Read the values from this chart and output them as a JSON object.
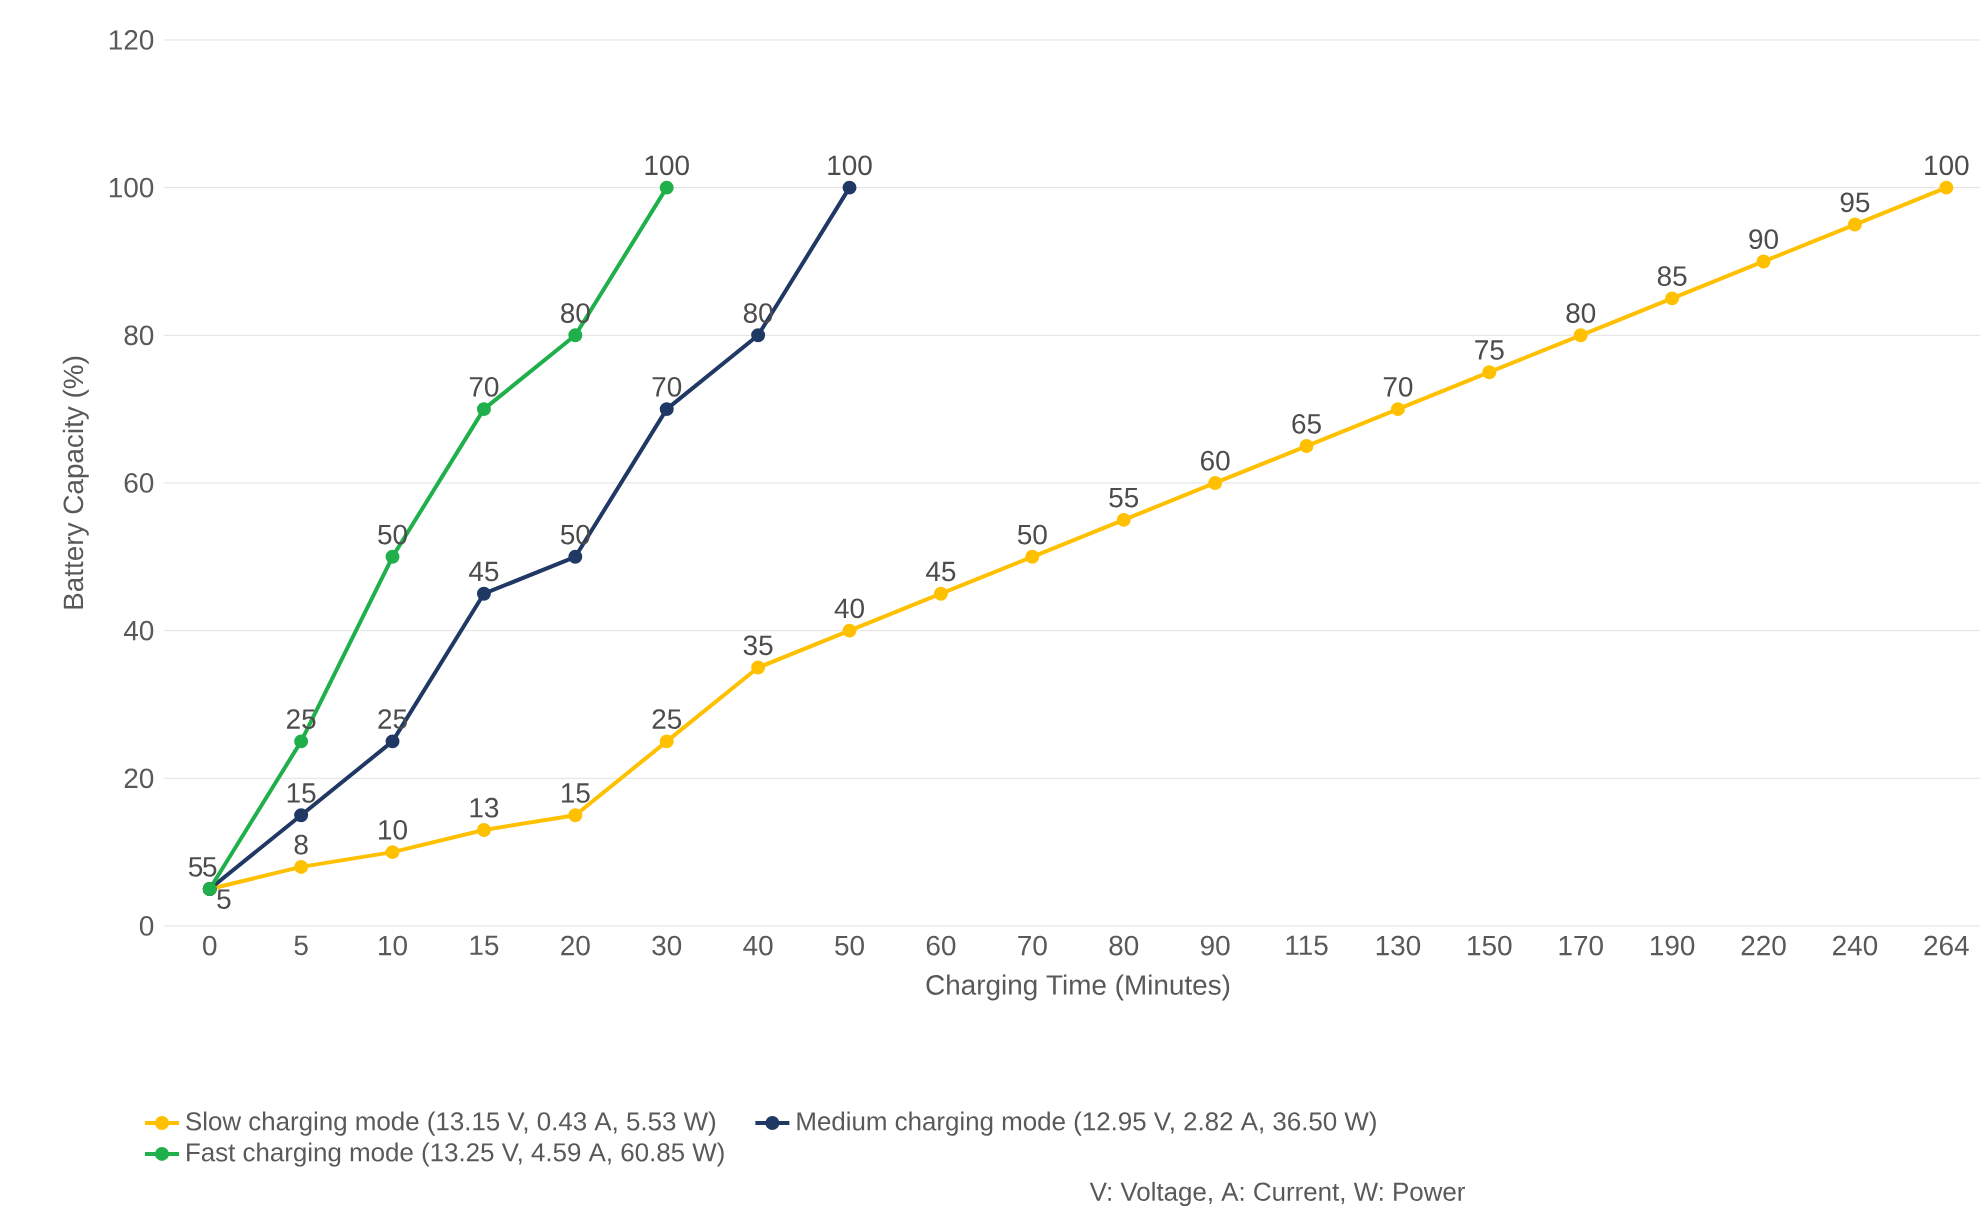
{
  "chart_data": {
    "type": "line",
    "xlabel": "Charging Time (Minutes)",
    "ylabel": "Battery Capacity (%)",
    "categories": [
      "0",
      "5",
      "10",
      "15",
      "20",
      "30",
      "40",
      "50",
      "60",
      "70",
      "80",
      "90",
      "115",
      "130",
      "150",
      "170",
      "190",
      "220",
      "240",
      "264"
    ],
    "ylim": [
      0,
      120
    ],
    "yticks": [
      0,
      20,
      40,
      60,
      80,
      100,
      120
    ],
    "grid": "y",
    "legend": "bottom",
    "marker": "circle",
    "line_style": "solid",
    "data_labels": true,
    "series": [
      {
        "name": "Slow charging mode (13.15 V, 0.43 A, 5.53 W)",
        "color": "#ffc000",
        "values": [
          5,
          8,
          10,
          13,
          15,
          25,
          35,
          40,
          45,
          50,
          55,
          60,
          65,
          70,
          75,
          80,
          85,
          90,
          95,
          100
        ]
      },
      {
        "name": "Medium charging mode (12.95 V, 2.82 A, 36.50 W)",
        "color": "#203864",
        "values": [
          5,
          15,
          25,
          45,
          50,
          70,
          80,
          100,
          null,
          null,
          null,
          null,
          null,
          null,
          null,
          null,
          null,
          null,
          null,
          null
        ]
      },
      {
        "name": "Fast charging mode (13.25 V, 4.59 A, 60.85 W)",
        "color": "#1fb04c",
        "values": [
          5,
          25,
          50,
          70,
          80,
          100,
          null,
          null,
          null,
          null,
          null,
          null,
          null,
          null,
          null,
          null,
          null,
          null,
          null,
          null
        ]
      }
    ],
    "annotations": [
      "V: Voltage, A: Current, W: Power"
    ]
  }
}
